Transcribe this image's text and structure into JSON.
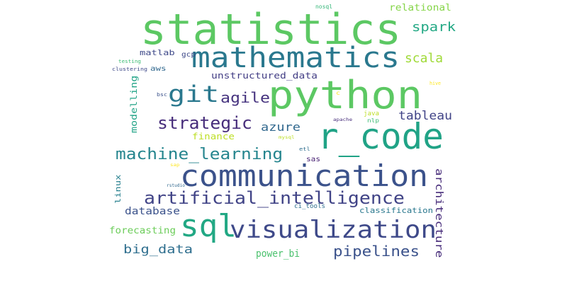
{
  "words": [
    {
      "text": "statistics",
      "color": "#5cc863"
    },
    {
      "text": "python",
      "color": "#5cc863"
    },
    {
      "text": "mathematics",
      "color": "#2a788e"
    },
    {
      "text": "r_code",
      "color": "#20a386"
    },
    {
      "text": "communication",
      "color": "#3b528b"
    },
    {
      "text": "sql",
      "color": "#22a884"
    },
    {
      "text": "visualization",
      "color": "#3e4989"
    },
    {
      "text": "artificial_intelligence",
      "color": "#414487"
    },
    {
      "text": "machine_learning",
      "color": "#25858e"
    },
    {
      "text": "git",
      "color": "#2a788e"
    },
    {
      "text": "strategic",
      "color": "#472d7b"
    },
    {
      "text": "agile",
      "color": "#46337f"
    },
    {
      "text": "pipelines",
      "color": "#3b528b"
    },
    {
      "text": "big_data",
      "color": "#2e6e8e"
    },
    {
      "text": "spark",
      "color": "#22a884"
    },
    {
      "text": "scala",
      "color": "#a0da39"
    },
    {
      "text": "tableau",
      "color": "#414487"
    },
    {
      "text": "azure",
      "color": "#31688e"
    },
    {
      "text": "architecture",
      "color": "#472c7a"
    },
    {
      "text": "database",
      "color": "#3b528b"
    },
    {
      "text": "forecasting",
      "color": "#6ccd5a"
    },
    {
      "text": "power_bi",
      "color": "#4ac16d"
    },
    {
      "text": "unstructured_data",
      "color": "#433e85"
    },
    {
      "text": "modelling",
      "color": "#20a386"
    },
    {
      "text": "relational",
      "color": "#86d549"
    },
    {
      "text": "finance",
      "color": "#bddf26"
    },
    {
      "text": "matlab",
      "color": "#3e4989"
    },
    {
      "text": "classification",
      "color": "#2a788e"
    },
    {
      "text": "linux",
      "color": "#27808e"
    },
    {
      "text": "aws",
      "color": "#31688e"
    },
    {
      "text": "gcp",
      "color": "#3e4989"
    },
    {
      "text": "sas",
      "color": "#482173"
    },
    {
      "text": "ci_tools",
      "color": "#2e6e8e"
    },
    {
      "text": "java",
      "color": "#bddf26"
    },
    {
      "text": "nlp",
      "color": "#3dbc74"
    },
    {
      "text": "nosql",
      "color": "#35b779"
    },
    {
      "text": "testing",
      "color": "#3dbc74"
    },
    {
      "text": "clustering",
      "color": "#3e4989"
    },
    {
      "text": "bsc",
      "color": "#3b528b"
    },
    {
      "text": "apache",
      "color": "#472d7b"
    },
    {
      "text": "etl",
      "color": "#2e6e8e"
    },
    {
      "text": "mysql",
      "color": "#bddf26"
    },
    {
      "text": "rstudio",
      "color": "#31688e"
    },
    {
      "text": "sap",
      "color": "#fde725"
    },
    {
      "text": "hive",
      "color": "#fde725"
    },
    {
      "text": "c",
      "color": "#fde725"
    }
  ]
}
